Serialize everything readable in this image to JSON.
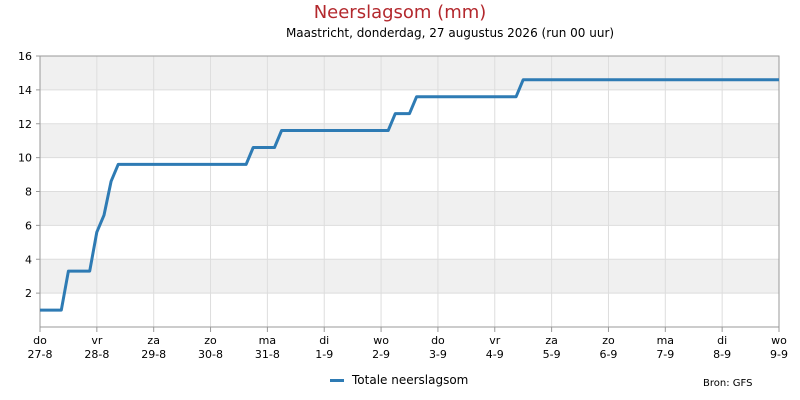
{
  "chart_data": {
    "type": "line",
    "title": "Neerslagsom (mm)",
    "subtitle": "Maastricht, donderdag, 27 augustus 2026 (run 00 uur)",
    "ylim": [
      0,
      16
    ],
    "yticks": [
      2,
      4,
      6,
      8,
      10,
      12,
      14,
      16
    ],
    "xlim": [
      0,
      312
    ],
    "xticks": [
      {
        "t": 0,
        "day": "do",
        "date": "27-8"
      },
      {
        "t": 24,
        "day": "vr",
        "date": "28-8"
      },
      {
        "t": 48,
        "day": "za",
        "date": "29-8"
      },
      {
        "t": 72,
        "day": "zo",
        "date": "30-8"
      },
      {
        "t": 96,
        "day": "ma",
        "date": "31-8"
      },
      {
        "t": 120,
        "day": "di",
        "date": "1-9"
      },
      {
        "t": 144,
        "day": "wo",
        "date": "2-9"
      },
      {
        "t": 168,
        "day": "do",
        "date": "3-9"
      },
      {
        "t": 192,
        "day": "vr",
        "date": "4-9"
      },
      {
        "t": 216,
        "day": "za",
        "date": "5-9"
      },
      {
        "t": 240,
        "day": "zo",
        "date": "6-9"
      },
      {
        "t": 264,
        "day": "ma",
        "date": "7-9"
      },
      {
        "t": 288,
        "day": "di",
        "date": "8-9"
      },
      {
        "t": 312,
        "day": "wo",
        "date": "9-9"
      }
    ],
    "grid": true,
    "legend_position": "bottom",
    "series": [
      {
        "name": "Totale neerslagsom",
        "color": "#2e7bb4",
        "points": [
          [
            0,
            1.0
          ],
          [
            9,
            1.0
          ],
          [
            12,
            3.3
          ],
          [
            21,
            3.3
          ],
          [
            24,
            5.6
          ],
          [
            27,
            6.6
          ],
          [
            30,
            8.6
          ],
          [
            33,
            9.6
          ],
          [
            87,
            9.6
          ],
          [
            90,
            10.6
          ],
          [
            99,
            10.6
          ],
          [
            102,
            11.6
          ],
          [
            147,
            11.6
          ],
          [
            150,
            12.6
          ],
          [
            156,
            12.6
          ],
          [
            159,
            13.6
          ],
          [
            201,
            13.6
          ],
          [
            204,
            14.6
          ],
          [
            312,
            14.6
          ]
        ]
      }
    ]
  },
  "source": "Bron: GFS",
  "colors": {
    "band": "#f0f0f0",
    "grid": "#dddddd",
    "axis": "#999999",
    "title": "#b3282d"
  }
}
